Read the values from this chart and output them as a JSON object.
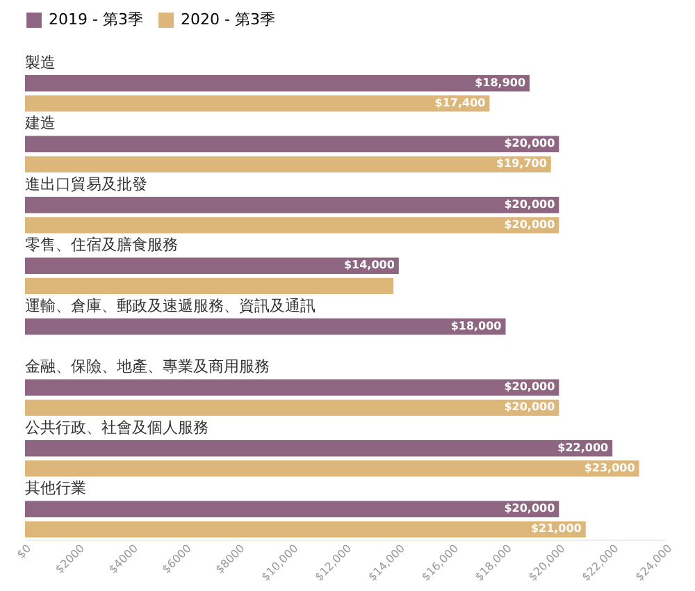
{
  "chart_data": {
    "type": "bar",
    "orientation": "horizontal",
    "legend": "top left",
    "categories": [
      "製造",
      "建造",
      "進出口貿易及批發",
      "零售、住宿及膳食服務",
      "運輸、倉庫、郵政及速遞服務、資訊及通訊",
      "金融、保險、地產、專業及商用服務",
      "公共行政、社會及個人服務",
      "其他行業"
    ],
    "series": [
      {
        "name": "2019 - 第3季",
        "color": "#8e6681",
        "values": [
          18900,
          20000,
          20000,
          14000,
          18000,
          20000,
          22000,
          20000
        ],
        "value_labels": [
          "$18,900",
          "$20,000",
          "$20,000",
          "$14,000",
          "$18,000",
          "$20,000",
          "$22,000",
          "$20,000"
        ]
      },
      {
        "name": "2020 - 第3季",
        "color": "#dcb779",
        "values": [
          17400,
          19700,
          20000,
          13800,
          null,
          20000,
          23000,
          21000
        ],
        "value_labels": [
          "$17,400",
          "$19,700",
          "$20,000",
          null,
          null,
          "$20,000",
          "$23,000",
          "$21,000"
        ]
      }
    ],
    "xlim": [
      0,
      24000
    ],
    "xticks": [
      {
        "value": 0,
        "label": "$0"
      },
      {
        "value": 2000,
        "label": "$2000"
      },
      {
        "value": 4000,
        "label": "$4000"
      },
      {
        "value": 6000,
        "label": "$6000"
      },
      {
        "value": 8000,
        "label": "$8000"
      },
      {
        "value": 10000,
        "label": "$10,000"
      },
      {
        "value": 12000,
        "label": "$12,000"
      },
      {
        "value": 14000,
        "label": "$14,000"
      },
      {
        "value": 16000,
        "label": "$16,000"
      },
      {
        "value": 18000,
        "label": "$18,000"
      },
      {
        "value": 20000,
        "label": "$20,000"
      },
      {
        "value": 22000,
        "label": "$22,000"
      },
      {
        "value": 24000,
        "label": "$24,000"
      }
    ],
    "grid": false
  }
}
